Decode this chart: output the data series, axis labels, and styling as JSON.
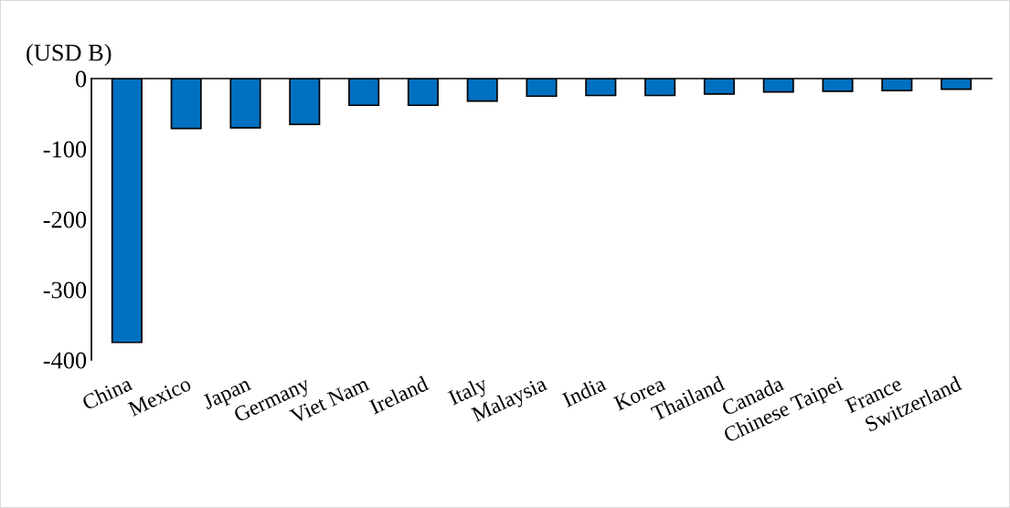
{
  "chart_data": {
    "type": "bar",
    "ylabel": "(USD B)",
    "categories": [
      "China",
      "Mexico",
      "Japan",
      "Germany",
      "Viet Nam",
      "Ireland",
      "Italy",
      "Malaysia",
      "India",
      "Korea",
      "Thailand",
      "Canada",
      "Chinese Taipei",
      "France",
      "Switzerland"
    ],
    "values": [
      -375,
      -71,
      -70,
      -65,
      -38,
      -38,
      -32,
      -25,
      -24,
      -24,
      -22,
      -19,
      -18,
      -17,
      -15
    ],
    "color": "#0070c0",
    "ylim": [
      -400,
      0
    ],
    "yticks": [
      -400,
      -300,
      -200,
      -100,
      0
    ],
    "grid": false
  }
}
